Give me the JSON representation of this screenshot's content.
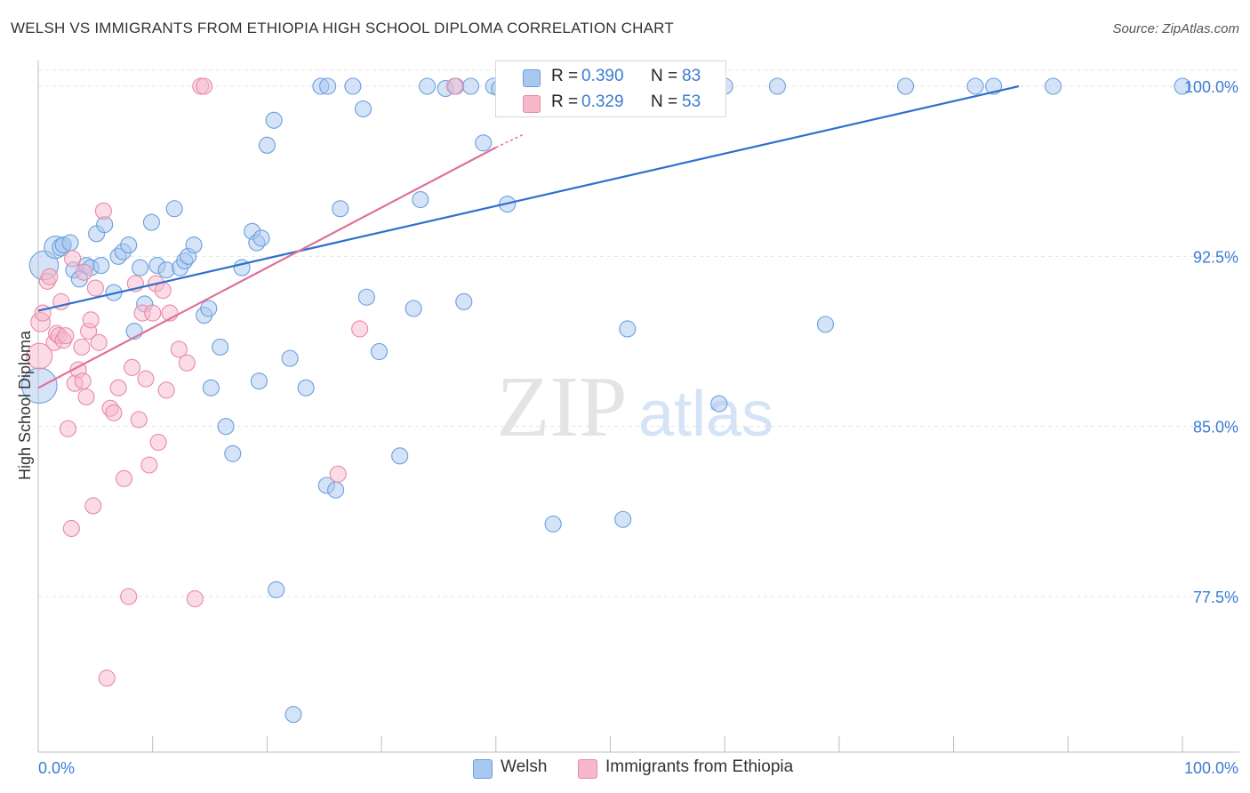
{
  "title": "WELSH VS IMMIGRANTS FROM ETHIOPIA HIGH SCHOOL DIPLOMA CORRELATION CHART",
  "source": "Source: ZipAtlas.com",
  "watermark": {
    "zip": "ZIP",
    "atlas": "atlas"
  },
  "colors": {
    "welsh_fill": "#a9c8f0",
    "welsh_stroke": "#6a9fdc",
    "welsh_line": "#2f6fce",
    "eth_fill": "#f7b8cb",
    "eth_stroke": "#e88aa6",
    "eth_line": "#e0709a",
    "tick_label": "#3a7bd5",
    "grid": "#e3e3e3"
  },
  "legend_stats": [
    {
      "series": "Welsh",
      "r_label": "R =",
      "r_value": "0.390",
      "n_label": "N =",
      "n_value": "83"
    },
    {
      "series": "Immigrants from Ethiopia",
      "r_label": "R =",
      "r_value": "0.329",
      "n_label": "N =",
      "n_value": "53"
    }
  ],
  "chart_data": {
    "type": "scatter",
    "title": "WELSH VS IMMIGRANTS FROM ETHIOPIA HIGH SCHOOL DIPLOMA CORRELATION CHART",
    "xlabel": "",
    "ylabel": "High School Diploma",
    "xlim": [
      0,
      100
    ],
    "ylim": [
      71.0,
      100.8
    ],
    "x_tick_labels": [
      "0.0%",
      "100.0%"
    ],
    "y_ticks": [
      77.5,
      85.0,
      92.5,
      100.0
    ],
    "y_tick_labels": [
      "77.5%",
      "85.0%",
      "92.5%",
      "100.0%"
    ],
    "grid": "horizontal dashed",
    "legend_position": "top-center",
    "series": [
      {
        "name": "Welsh",
        "points": [
          [
            0.1,
            86.8,
            2.2
          ],
          [
            0.5,
            92.1,
            1.8
          ],
          [
            1.5,
            92.9,
            1.4
          ],
          [
            2.0,
            92.9,
            1.1
          ],
          [
            2.2,
            93.0,
            1.0
          ],
          [
            2.8,
            93.1,
            1.0
          ],
          [
            3.1,
            91.9,
            1.0
          ],
          [
            3.6,
            91.5,
            1.0
          ],
          [
            4.2,
            92.1,
            1.0
          ],
          [
            4.6,
            92.0,
            1.0
          ],
          [
            5.1,
            93.5,
            1.0
          ],
          [
            5.8,
            93.9,
            1.0
          ],
          [
            5.5,
            92.1,
            1.0
          ],
          [
            6.6,
            90.9,
            1.0
          ],
          [
            7.0,
            92.5,
            1.0
          ],
          [
            7.4,
            92.7,
            1.0
          ],
          [
            7.9,
            93.0,
            1.0
          ],
          [
            8.4,
            89.2,
            1.0
          ],
          [
            8.9,
            92.0,
            1.0
          ],
          [
            9.3,
            90.4,
            1.0
          ],
          [
            9.9,
            94.0,
            1.0
          ],
          [
            10.4,
            92.1,
            1.0
          ],
          [
            11.2,
            91.9,
            1.0
          ],
          [
            11.9,
            94.6,
            1.0
          ],
          [
            12.4,
            92.0,
            1.0
          ],
          [
            12.8,
            92.3,
            1.0
          ],
          [
            13.1,
            92.5,
            1.0
          ],
          [
            13.6,
            93.0,
            1.0
          ],
          [
            14.5,
            89.9,
            1.0
          ],
          [
            14.9,
            90.2,
            1.0
          ],
          [
            15.1,
            86.7,
            1.0
          ],
          [
            15.9,
            88.5,
            1.0
          ],
          [
            16.4,
            85.0,
            1.0
          ],
          [
            17.0,
            83.8,
            1.0
          ],
          [
            17.8,
            92.0,
            1.0
          ],
          [
            18.7,
            93.6,
            1.0
          ],
          [
            19.1,
            93.1,
            1.0
          ],
          [
            19.5,
            93.3,
            1.0
          ],
          [
            19.3,
            87.0,
            1.0
          ],
          [
            20.0,
            97.4,
            1.0
          ],
          [
            20.6,
            98.5,
            1.0
          ],
          [
            20.8,
            77.8,
            1.0
          ],
          [
            22.0,
            88.0,
            1.0
          ],
          [
            22.3,
            72.3,
            1.0
          ],
          [
            23.4,
            86.7,
            1.0
          ],
          [
            25.2,
            82.4,
            1.0
          ],
          [
            26.0,
            82.2,
            1.0
          ],
          [
            24.7,
            100.0,
            1.0
          ],
          [
            25.3,
            100.0,
            1.0
          ],
          [
            26.4,
            94.6,
            1.0
          ],
          [
            27.5,
            100.0,
            1.0
          ],
          [
            28.4,
            99.0,
            1.0
          ],
          [
            28.7,
            90.7,
            1.0
          ],
          [
            29.8,
            88.3,
            1.0
          ],
          [
            31.6,
            83.7,
            1.0
          ],
          [
            32.8,
            90.2,
            1.0
          ],
          [
            33.4,
            95.0,
            1.0
          ],
          [
            34.0,
            100.0,
            1.0
          ],
          [
            35.6,
            99.9,
            1.0
          ],
          [
            36.5,
            100.0,
            1.0
          ],
          [
            37.2,
            90.5,
            1.0
          ],
          [
            37.8,
            100.0,
            1.0
          ],
          [
            38.9,
            97.5,
            1.0
          ],
          [
            39.8,
            100.0,
            1.0
          ],
          [
            40.3,
            99.9,
            1.0
          ],
          [
            41.0,
            94.8,
            1.0
          ],
          [
            42.1,
            100.0,
            1.0
          ],
          [
            43.2,
            100.0,
            1.0
          ],
          [
            44.0,
            100.0,
            1.0
          ],
          [
            45.0,
            80.7,
            1.0
          ],
          [
            46.7,
            100.0,
            1.0
          ],
          [
            47.1,
            100.0,
            1.0
          ],
          [
            48.0,
            100.0,
            1.0
          ],
          [
            49.5,
            100.0,
            1.0
          ],
          [
            51.1,
            80.9,
            1.0
          ],
          [
            51.5,
            89.3,
            1.0
          ],
          [
            53.3,
            100.0,
            1.0
          ],
          [
            55.4,
            100.0,
            1.0
          ],
          [
            57.6,
            100.0,
            1.0
          ],
          [
            59.5,
            86.0,
            1.0
          ],
          [
            60.0,
            100.0,
            1.0
          ],
          [
            64.6,
            100.0,
            1.0
          ],
          [
            68.8,
            89.5,
            1.0
          ],
          [
            75.8,
            100.0,
            1.0
          ],
          [
            81.9,
            100.0,
            1.0
          ],
          [
            83.5,
            100.0,
            1.0
          ],
          [
            88.7,
            100.0,
            1.0
          ],
          [
            100.0,
            100.0,
            1.0
          ]
        ],
        "trend": [
          [
            0.0,
            90.1
          ],
          [
            85.7,
            100.0
          ]
        ]
      },
      {
        "name": "Immigrants from Ethiopia",
        "points": [
          [
            0.1,
            88.1,
            1.6
          ],
          [
            0.2,
            89.6,
            1.2
          ],
          [
            0.4,
            90.0,
            1.0
          ],
          [
            0.8,
            91.4,
            1.0
          ],
          [
            1.0,
            91.6,
            1.0
          ],
          [
            1.4,
            88.7,
            1.0
          ],
          [
            1.6,
            89.1,
            1.0
          ],
          [
            1.8,
            89.0,
            1.0
          ],
          [
            2.0,
            90.5,
            1.0
          ],
          [
            2.2,
            88.8,
            1.0
          ],
          [
            2.4,
            89.0,
            1.0
          ],
          [
            2.6,
            84.9,
            1.0
          ],
          [
            2.9,
            80.5,
            1.0
          ],
          [
            3.0,
            92.4,
            1.0
          ],
          [
            3.2,
            86.9,
            1.0
          ],
          [
            3.5,
            87.5,
            1.0
          ],
          [
            3.8,
            88.5,
            1.0
          ],
          [
            3.9,
            87.0,
            1.0
          ],
          [
            4.0,
            91.8,
            1.0
          ],
          [
            4.2,
            86.3,
            1.0
          ],
          [
            4.4,
            89.2,
            1.0
          ],
          [
            4.6,
            89.7,
            1.0
          ],
          [
            4.8,
            81.5,
            1.0
          ],
          [
            5.0,
            91.1,
            1.0
          ],
          [
            5.3,
            88.7,
            1.0
          ],
          [
            5.7,
            94.5,
            1.0
          ],
          [
            6.0,
            73.9,
            1.0
          ],
          [
            6.3,
            85.8,
            1.0
          ],
          [
            6.6,
            85.6,
            1.0
          ],
          [
            7.0,
            86.7,
            1.0
          ],
          [
            7.5,
            82.7,
            1.0
          ],
          [
            7.9,
            77.5,
            1.0
          ],
          [
            8.2,
            87.6,
            1.0
          ],
          [
            8.5,
            91.3,
            1.0
          ],
          [
            8.8,
            85.3,
            1.0
          ],
          [
            9.1,
            90.0,
            1.0
          ],
          [
            9.4,
            87.1,
            1.0
          ],
          [
            9.7,
            83.3,
            1.0
          ],
          [
            10.0,
            90.0,
            1.0
          ],
          [
            10.3,
            91.3,
            1.0
          ],
          [
            10.5,
            84.3,
            1.0
          ],
          [
            10.9,
            91.0,
            1.0
          ],
          [
            11.2,
            86.6,
            1.0
          ],
          [
            11.5,
            90.0,
            1.0
          ],
          [
            12.3,
            88.4,
            1.0
          ],
          [
            13.0,
            87.8,
            1.0
          ],
          [
            13.7,
            77.4,
            1.0
          ],
          [
            14.2,
            100.0,
            1.0
          ],
          [
            14.5,
            100.0,
            1.0
          ],
          [
            26.2,
            82.9,
            1.0
          ],
          [
            28.1,
            89.3,
            1.0
          ],
          [
            36.4,
            100.0,
            1.0
          ],
          [
            41.8,
            100.0,
            1.0
          ]
        ],
        "trend": [
          [
            0.0,
            86.7
          ],
          [
            40.0,
            97.3
          ]
        ],
        "trend_dashed": [
          [
            40.0,
            97.3
          ],
          [
            42.5,
            97.9
          ]
        ]
      }
    ]
  }
}
